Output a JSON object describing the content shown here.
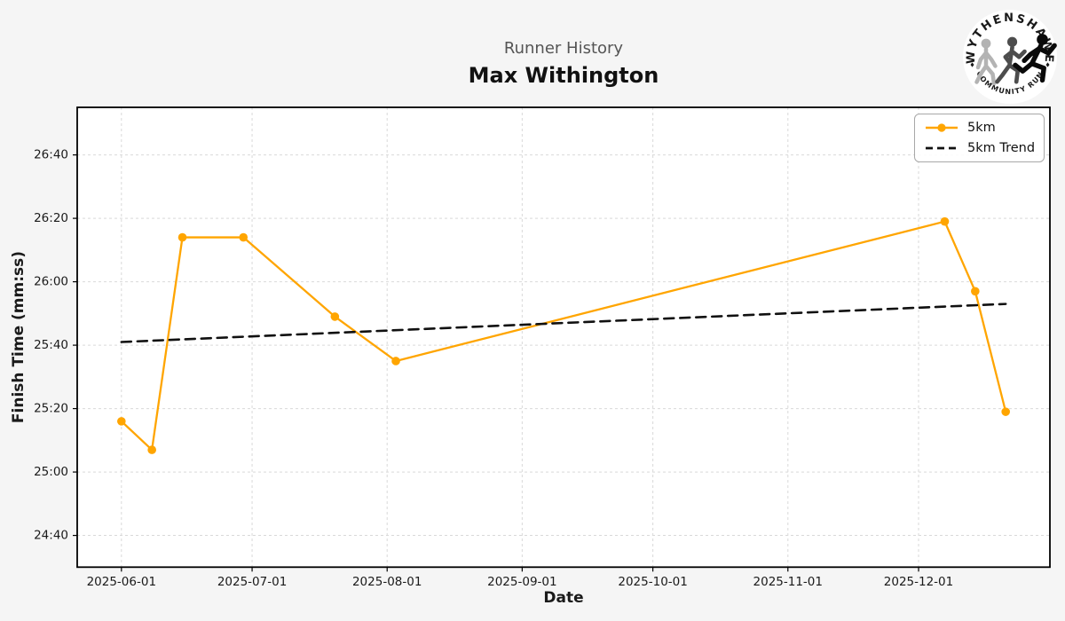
{
  "header": {
    "subtitle": "Runner History",
    "title": "Max Withington"
  },
  "logo": {
    "top_text": "WYTHENSHAWE",
    "bottom_text": "COMMUNITY RUN",
    "runner_colors": [
      "#b3b3b3",
      "#4d4d4d",
      "#0a0a0a"
    ]
  },
  "chart_data": {
    "type": "line",
    "title": "Runner History",
    "person": "Max Withington",
    "xlabel": "Date",
    "ylabel": "Finish Time (mm:ss)",
    "grid": true,
    "legend_position": "upper right",
    "x_margin_frac": 0.05,
    "ylim_seconds": [
      1470,
      1615
    ],
    "x_ticks": [
      "2025-06-01",
      "2025-07-01",
      "2025-08-01",
      "2025-09-01",
      "2025-10-01",
      "2025-11-01",
      "2025-12-01"
    ],
    "y_ticks": [
      {
        "seconds": 1480,
        "label": "24:40"
      },
      {
        "seconds": 1500,
        "label": "25:00"
      },
      {
        "seconds": 1520,
        "label": "25:20"
      },
      {
        "seconds": 1540,
        "label": "25:40"
      },
      {
        "seconds": 1560,
        "label": "26:00"
      },
      {
        "seconds": 1580,
        "label": "26:20"
      },
      {
        "seconds": 1600,
        "label": "26:40"
      }
    ],
    "series": [
      {
        "name": "5km",
        "color": "#FFA500",
        "style": "solid",
        "marker": "circle",
        "points": [
          {
            "date": "2025-06-01",
            "time": "25:16"
          },
          {
            "date": "2025-06-08",
            "time": "25:07"
          },
          {
            "date": "2025-06-15",
            "time": "26:14"
          },
          {
            "date": "2025-06-29",
            "time": "26:14"
          },
          {
            "date": "2025-07-20",
            "time": "25:49"
          },
          {
            "date": "2025-08-03",
            "time": "25:35"
          },
          {
            "date": "2025-12-07",
            "time": "26:19"
          },
          {
            "date": "2025-12-14",
            "time": "25:57"
          },
          {
            "date": "2025-12-21",
            "time": "25:19"
          }
        ]
      },
      {
        "name": "5km Trend",
        "color": "#111111",
        "style": "dashed",
        "marker": "none",
        "points": [
          {
            "date": "2025-06-01",
            "time": "25:41"
          },
          {
            "date": "2025-12-21",
            "time": "25:53"
          }
        ]
      }
    ],
    "colors": {
      "figure_background": "#f5f5f5",
      "plot_background": "#ffffff",
      "gridline": "#d9d9d9",
      "axis_border": "#000000",
      "tick_label": "#1a1a1a"
    }
  }
}
